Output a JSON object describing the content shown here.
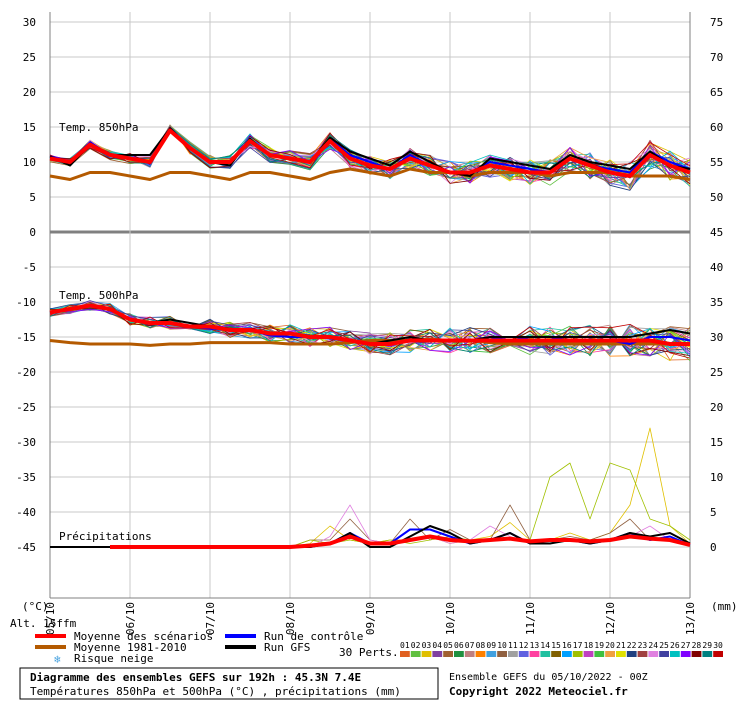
{
  "chart_data": {
    "type": "line",
    "title": "Diagramme des ensembles GEFS sur 192h : 45.3N 7.4E",
    "subtitle": "Températures 850hPa et 500hPa (°C) , précipitations (mm)",
    "run_info": "Ensemble GEFS du 05/10/2022 - 00Z",
    "copyright": "Copyright 2022 Meteociel.fr",
    "altitude": "Alt. 15ffm",
    "left_unit": "(°C)",
    "right_unit": "(mm)",
    "perts_label": "30 Perts.",
    "y_left_ticks": [
      "30",
      "25",
      "20",
      "15",
      "10",
      "5",
      "0",
      "-5",
      "-10",
      "-15",
      "-20",
      "-25",
      "-30",
      "-35",
      "-40",
      "-45"
    ],
    "y_left_values": [
      30,
      25,
      20,
      15,
      10,
      5,
      0,
      -5,
      -10,
      -15,
      -20,
      -25,
      -30,
      -35,
      -40,
      -45
    ],
    "y_right_ticks": [
      "75",
      "70",
      "65",
      "60",
      "55",
      "50",
      "45",
      "40",
      "35",
      "30",
      "25",
      "20",
      "15",
      "10",
      "5",
      "0"
    ],
    "ylim": [
      -50,
      33
    ],
    "xlim": [
      0,
      32
    ],
    "x_tick_labels": [
      "05/10",
      "06/10",
      "07/10",
      "08/10",
      "09/10",
      "10/10",
      "11/10",
      "12/10",
      "13/10"
    ],
    "x_tick_positions": [
      0,
      4,
      8,
      12,
      16,
      20,
      24,
      28,
      32
    ],
    "section_labels": [
      "Temp. 850hPa",
      "Temp. 500hPa",
      "Précipitations"
    ],
    "legend": [
      {
        "label": "Moyenne des scénarios",
        "color": "#ff0000"
      },
      {
        "label": "Moyenne 1981-2010",
        "color": "#b45a00"
      },
      {
        "label": "Risque neige",
        "color": "#4aa3df"
      },
      {
        "label": "Run de contrôle",
        "color": "#0000ff"
      },
      {
        "label": "Run GFS",
        "color": "#000000"
      }
    ],
    "pert_numbers": [
      "01",
      "02",
      "03",
      "04",
      "05",
      "06",
      "07",
      "08",
      "09",
      "10",
      "11",
      "12",
      "13",
      "14",
      "15",
      "16",
      "17",
      "18",
      "19",
      "20",
      "21",
      "22",
      "23",
      "24",
      "25",
      "26",
      "27",
      "28",
      "29",
      "30"
    ],
    "pert_colors": [
      "#e06020",
      "#60c040",
      "#e0c000",
      "#8040a0",
      "#a06030",
      "#209040",
      "#c08080",
      "#ff8000",
      "#40a0e0",
      "#906040",
      "#a0a0a0",
      "#6060e0",
      "#ff40a0",
      "#20c0a0",
      "#806000",
      "#00a0ff",
      "#a0c000",
      "#c040c0",
      "#40c040",
      "#f0a040",
      "#e0e000",
      "#204080",
      "#a04040",
      "#e080e0",
      "#4040a0",
      "#00c0c0",
      "#8000ff",
      "#800000",
      "#008080",
      "#c00000"
    ],
    "t850": {
      "mean": [
        10.5,
        10.0,
        12.5,
        11.0,
        10.5,
        10.0,
        14.5,
        12.0,
        10.0,
        10.0,
        13.0,
        11.0,
        10.5,
        10.0,
        13.0,
        10.5,
        9.5,
        9.0,
        10.5,
        9.5,
        8.5,
        8.5,
        9.5,
        9.0,
        8.5,
        8.5,
        10.5,
        9.5,
        8.5,
        8.0,
        11.0,
        9.5,
        8.5
      ],
      "clim": [
        8.0,
        7.5,
        8.5,
        8.5,
        8.0,
        7.5,
        8.5,
        8.5,
        8.0,
        7.5,
        8.5,
        8.5,
        8.0,
        7.5,
        8.5,
        9.0,
        8.5,
        8.0,
        9.0,
        8.5,
        8.5,
        8.0,
        8.5,
        8.5,
        8.5,
        8.0,
        8.5,
        8.5,
        8.5,
        8.0,
        8.0,
        8.0,
        7.5
      ],
      "control": [
        10.8,
        10.0,
        12.8,
        11.0,
        10.5,
        10.0,
        14.8,
        12.0,
        10.0,
        10.0,
        13.3,
        11.0,
        10.5,
        10.0,
        13.3,
        11.0,
        10.0,
        9.0,
        11.0,
        9.5,
        8.5,
        8.5,
        10.0,
        9.5,
        9.0,
        8.5,
        10.5,
        9.5,
        9.0,
        8.5,
        11.5,
        10.0,
        9.0
      ],
      "gfs": [
        10.8,
        9.5,
        12.5,
        11.0,
        11.0,
        11.0,
        14.8,
        12.0,
        10.0,
        9.5,
        13.3,
        11.0,
        10.5,
        10.0,
        13.5,
        11.5,
        10.5,
        9.5,
        11.5,
        10.0,
        8.5,
        8.0,
        10.5,
        10.0,
        9.5,
        9.0,
        11.0,
        10.0,
        9.5,
        9.0,
        11.5,
        9.5,
        9.0
      ]
    },
    "t500": {
      "mean": [
        -11.5,
        -11.0,
        -10.5,
        -11.0,
        -12.5,
        -13.0,
        -13.0,
        -13.5,
        -13.5,
        -14.0,
        -14.0,
        -14.5,
        -14.5,
        -15.0,
        -15.0,
        -15.5,
        -16.0,
        -16.0,
        -15.5,
        -15.5,
        -15.5,
        -15.5,
        -15.5,
        -15.5,
        -15.5,
        -15.5,
        -15.5,
        -15.5,
        -15.5,
        -15.5,
        -15.5,
        -16.0,
        -16.0
      ],
      "clim": [
        -15.5,
        -15.8,
        -16.0,
        -16.0,
        -16.0,
        -16.2,
        -16.0,
        -16.0,
        -15.8,
        -15.8,
        -15.8,
        -15.8,
        -16.0,
        -16.0,
        -16.0,
        -15.8,
        -15.5,
        -15.5,
        -15.5,
        -15.3,
        -15.5,
        -15.5,
        -15.8,
        -16.0,
        -16.0,
        -16.0,
        -16.0,
        -16.0,
        -16.0,
        -16.0,
        -16.0,
        -16.0,
        -16.0
      ],
      "control": [
        -11.5,
        -11.0,
        -10.5,
        -11.0,
        -12.5,
        -13.0,
        -13.0,
        -13.5,
        -13.8,
        -14.0,
        -14.0,
        -14.8,
        -15.0,
        -15.0,
        -15.2,
        -15.5,
        -16.0,
        -16.0,
        -15.5,
        -15.5,
        -15.5,
        -15.5,
        -15.0,
        -15.5,
        -15.0,
        -15.0,
        -15.5,
        -15.5,
        -15.5,
        -16.0,
        -15.0,
        -15.0,
        -15.5
      ],
      "gfs": [
        -11.5,
        -11.0,
        -10.5,
        -11.0,
        -12.5,
        -13.0,
        -12.5,
        -13.0,
        -13.5,
        -13.8,
        -14.0,
        -14.5,
        -14.5,
        -14.8,
        -15.0,
        -15.5,
        -16.0,
        -15.5,
        -15.0,
        -15.5,
        -15.5,
        -15.5,
        -15.0,
        -15.0,
        -15.0,
        -15.0,
        -15.0,
        -15.0,
        -15.0,
        -15.0,
        -14.5,
        -14.0,
        -14.5
      ]
    },
    "precip": {
      "mean": [
        0,
        0,
        0,
        0,
        0,
        0,
        0,
        0,
        0,
        0,
        0,
        0,
        0,
        0.2,
        0.5,
        1.5,
        0.5,
        0.5,
        1.0,
        1.5,
        1.0,
        0.8,
        1.0,
        1.2,
        0.8,
        1.0,
        1.0,
        0.8,
        1.0,
        1.5,
        1.2,
        1.0,
        0.3
      ],
      "control": [
        0,
        0,
        0,
        0,
        0,
        0,
        0,
        0,
        0,
        0,
        0,
        0,
        0,
        0,
        0.5,
        2.0,
        0.5,
        0.5,
        2.5,
        2.5,
        1.5,
        0.5,
        1.0,
        2.0,
        0.5,
        1.0,
        1.0,
        0.5,
        1.0,
        2.0,
        1.0,
        1.5,
        0.3
      ],
      "gfs": [
        0,
        0,
        0,
        0,
        0,
        0,
        0,
        0,
        0,
        0,
        0,
        0,
        0,
        0,
        0.5,
        2.0,
        0,
        0,
        1.5,
        3.0,
        2.0,
        0.5,
        1.0,
        2.0,
        0.5,
        0.5,
        1.0,
        0.5,
        1.0,
        2.0,
        1.5,
        2.0,
        0.5
      ],
      "max_members": [
        [
          0,
          0,
          0,
          0,
          0,
          0,
          0,
          0,
          0,
          0,
          0,
          0,
          0,
          0.5,
          3.0,
          1.0,
          0.5,
          1.0,
          1.0,
          1.5,
          0.5,
          1.0,
          1.5,
          3.5,
          1.0,
          1.0,
          2.0,
          1.0,
          2.0,
          6.0,
          17.0,
          3.0,
          0.5
        ],
        [
          0,
          0,
          0,
          0,
          0,
          0,
          0,
          0,
          0,
          0,
          0,
          0,
          0,
          1.0,
          1.0,
          4.0,
          1.0,
          0.5,
          4.0,
          1.0,
          2.5,
          1.0,
          1.0,
          6.0,
          1.0,
          1.0,
          1.5,
          1.0,
          2.0,
          4.0,
          1.0,
          1.0,
          0.5
        ],
        [
          0,
          0,
          0,
          0,
          0,
          0,
          0,
          0,
          0,
          0,
          0,
          0,
          0,
          1.0,
          0.5,
          1.0,
          0.5,
          1.0,
          0.5,
          1.0,
          1.5,
          1.0,
          1.0,
          1.0,
          1.0,
          10.0,
          12.0,
          4.0,
          12.0,
          11.0,
          4.0,
          3.0,
          1.0
        ],
        [
          0,
          0,
          0,
          0,
          0,
          0,
          0,
          0,
          0,
          0,
          0,
          0,
          0,
          0,
          1.5,
          6.0,
          1.0,
          0.5,
          1.0,
          1.5,
          0.5,
          1.0,
          3.0,
          1.5,
          0.5,
          1.0,
          1.0,
          1.0,
          1.0,
          1.5,
          3.0,
          1.0,
          0.5
        ]
      ]
    }
  }
}
